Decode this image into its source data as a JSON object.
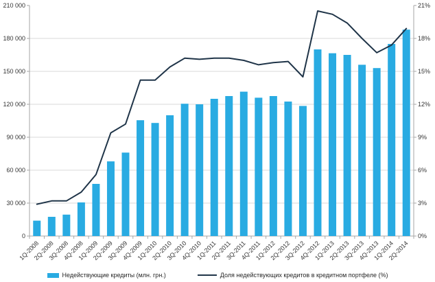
{
  "chart_data": {
    "type": "bar",
    "subtype": "combo-bar-line",
    "title": "",
    "categories": [
      "1Q-2008",
      "2Q-2008",
      "3Q-2008",
      "4Q-2008",
      "1Q-2009",
      "2Q-2009",
      "3Q-2009",
      "4Q-2009",
      "1Q-2010",
      "2Q-2010",
      "3Q-2010",
      "4Q-2010",
      "1Q-2011",
      "2Q-2011",
      "3Q-2011",
      "4Q-2011",
      "1Q-2012",
      "2Q-2012",
      "3Q-2012",
      "4Q-2012",
      "1Q-2013",
      "2Q-2013",
      "3Q-2013",
      "4Q-2013",
      "1Q-2014",
      "2Q-2014"
    ],
    "series": [
      {
        "name": "Недействующие кредиты (млн. грн.)",
        "type": "bar",
        "axis": "left",
        "color": "#29ABE2",
        "values": [
          14000,
          17500,
          19500,
          30600,
          47500,
          68000,
          76000,
          105500,
          103000,
          110000,
          120500,
          120000,
          125000,
          127500,
          131500,
          126000,
          127500,
          122500,
          118500,
          170000,
          166500,
          165000,
          156000,
          153000,
          175000,
          188000
        ]
      },
      {
        "name": "Доля недействующих кредитов в кредитном портфеле (%)",
        "type": "line",
        "axis": "right",
        "color": "#1F3448",
        "values": [
          2.9,
          3.2,
          3.2,
          4.0,
          5.6,
          9.4,
          10.2,
          14.2,
          14.2,
          15.4,
          16.2,
          16.1,
          16.2,
          16.2,
          16.0,
          15.6,
          15.8,
          15.9,
          14.5,
          20.5,
          20.2,
          19.4,
          18.0,
          16.7,
          17.4,
          18.9
        ]
      }
    ],
    "left_axis": {
      "min": 0,
      "max": 210000,
      "step": 30000,
      "tick_labels": [
        "0",
        "30 000",
        "60 000",
        "90 000",
        "120 000",
        "150 000",
        "180 000",
        "210 000"
      ]
    },
    "right_axis": {
      "min": 0,
      "max": 21,
      "step": 3,
      "tick_labels": [
        "0%",
        "3%",
        "6%",
        "9%",
        "12%",
        "15%",
        "18%",
        "21%"
      ]
    },
    "grid": true,
    "legend_position": "bottom"
  },
  "colors": {
    "gridline": "#D9D9D9",
    "axis": "#A6A6A6",
    "tick_text": "#333333",
    "background": "#FFFFFF"
  }
}
